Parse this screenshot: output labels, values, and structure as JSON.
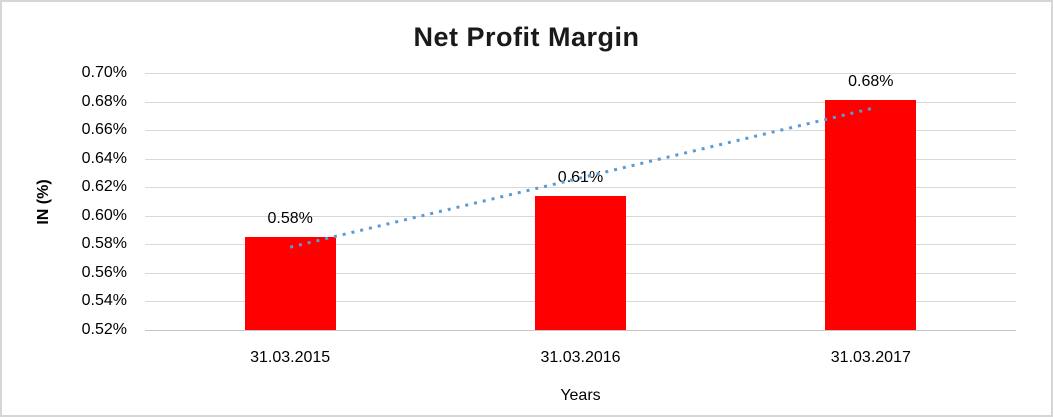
{
  "window": {
    "background": "#ffffff",
    "border_color": "#d6d6d6"
  },
  "chart_data": {
    "type": "bar",
    "title": "Net Profit Margin",
    "xlabel": "Years",
    "ylabel": "IN (%)",
    "categories": [
      "31.03.2015",
      "31.03.2016",
      "31.03.2017"
    ],
    "series": [
      {
        "name": "Net Profit Margin",
        "values": [
          0.585,
          0.614,
          0.681
        ],
        "data_labels": [
          "0.58%",
          "0.61%",
          "0.68%"
        ],
        "color": "#ff0000"
      }
    ],
    "trendline": {
      "style": "dotted",
      "color": "#5b9bd5",
      "endpoint_values": [
        0.578,
        0.675
      ]
    },
    "ylim": [
      0.52,
      0.7
    ],
    "ytick_step": 0.02,
    "ytick_labels": [
      "0.70%",
      "0.68%",
      "0.66%",
      "0.64%",
      "0.62%",
      "0.60%",
      "0.58%",
      "0.56%",
      "0.54%",
      "0.52%"
    ],
    "grid": "horizontal",
    "gridline_color": "#d9d9d9",
    "legend": "none"
  }
}
